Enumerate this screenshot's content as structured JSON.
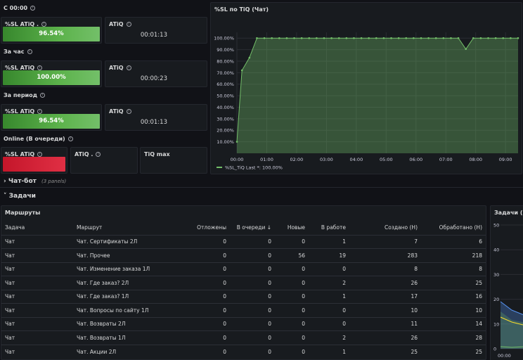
{
  "header": {
    "time_from": "С 00:00"
  },
  "kpis": {
    "from_midnight": {
      "sl_title": "%SL ATiQ .",
      "sl_value": "96.54%",
      "atiq_title": "ATiQ",
      "atiq_value": "00:01:13"
    },
    "hour_label": "За час",
    "hour": {
      "sl_title": "%SL ATiQ",
      "sl_value": "100.00%",
      "atiq_title": "ATiQ",
      "atiq_value": "00:00:23"
    },
    "period_label": "За период",
    "period": {
      "sl_title": "%SL ATiQ",
      "sl_value": "96.54%",
      "atiq_title": "ATiQ",
      "atiq_value": "00:01:13"
    },
    "online_label": "Online (В очереди)",
    "online": {
      "sl_title": "%SL ATiQ",
      "atiq_title": "ATiQ .",
      "tiq_max_title": "TiQ max"
    }
  },
  "colors": {
    "green": "#73bf69",
    "red": "#e02f44",
    "panel": "#181b1f",
    "bg": "#111217"
  },
  "chart_data": [
    {
      "type": "line",
      "title": "%SL по TiQ (Чат)",
      "ylim": [
        0,
        105
      ],
      "y_ticks": [
        "100.00%",
        "90.00%",
        "80.00%",
        "70.00%",
        "60.00%",
        "50.00%",
        "40.00%",
        "30.00%",
        "20.00%",
        "10.00%"
      ],
      "x_ticks": [
        "00:00",
        "01:00",
        "02:00",
        "03:00",
        "04:00",
        "05:00",
        "06:00",
        "07:00",
        "08:00",
        "09:00"
      ],
      "x": [
        0,
        0.17,
        0.42,
        0.67,
        0.92,
        1.17,
        1.42,
        1.67,
        1.92,
        2.17,
        2.42,
        2.67,
        2.92,
        3.17,
        3.42,
        3.67,
        3.92,
        4.17,
        4.42,
        4.67,
        4.92,
        5.17,
        5.42,
        5.67,
        5.92,
        6.17,
        6.42,
        6.67,
        6.92,
        7.17,
        7.42,
        7.67,
        7.92,
        8.17,
        8.42,
        8.67,
        8.92,
        9.17,
        9.42
      ],
      "series": [
        {
          "name": "%SL_TiQ",
          "values": [
            10,
            72,
            83,
            100,
            100,
            100,
            100,
            100,
            100,
            100,
            100,
            100,
            100,
            100,
            100,
            100,
            100,
            100,
            100,
            100,
            100,
            100,
            100,
            100,
            100,
            100,
            100,
            100,
            100,
            100,
            100,
            90.5,
            100,
            100,
            100,
            100,
            100,
            100,
            100
          ]
        }
      ],
      "legend": {
        "series": "%SL_TiQ",
        "last_label": "Last *:",
        "last_value": "100.00%"
      },
      "grid": true
    },
    {
      "type": "area",
      "title": "Задачи (Ча",
      "y_ticks": [
        "50",
        "40",
        "30",
        "20",
        "10",
        "0"
      ],
      "x_ticks": [
        "00:00"
      ],
      "ylim": [
        0,
        50
      ]
    }
  ],
  "rows": {
    "chatbot_label": "Чат-бот",
    "chatbot_count": "(3 panels)",
    "tasks_label": "Задачи"
  },
  "routes": {
    "title": "Маршруты",
    "columns": [
      "Задача",
      "Маршрут",
      "Отложены",
      "В очереди ↓",
      "Новые",
      "В работе",
      "Создано (Н)",
      "Обработано (Н)"
    ],
    "rows": [
      [
        "Чат",
        "Чат. Сертификаты 2Л",
        "0",
        "0",
        "0",
        "1",
        "7",
        "6"
      ],
      [
        "Чат",
        "Чат. Прочее",
        "0",
        "0",
        "56",
        "19",
        "283",
        "218"
      ],
      [
        "Чат",
        "Чат. Изменение заказа 1Л",
        "0",
        "0",
        "0",
        "0",
        "8",
        "8"
      ],
      [
        "Чат",
        "Чат. Где заказ? 2Л",
        "0",
        "0",
        "0",
        "2",
        "26",
        "25"
      ],
      [
        "Чат",
        "Чат. Где заказ? 1Л",
        "0",
        "0",
        "0",
        "1",
        "17",
        "16"
      ],
      [
        "Чат",
        "Чат. Вопросы по сайту 1Л",
        "0",
        "0",
        "0",
        "0",
        "10",
        "10"
      ],
      [
        "Чат",
        "Чат. Возвраты 2Л",
        "0",
        "0",
        "0",
        "0",
        "11",
        "14"
      ],
      [
        "Чат",
        "Чат. Возвраты 1Л",
        "0",
        "0",
        "0",
        "2",
        "26",
        "28"
      ],
      [
        "Чат",
        "Чат. Акции 2Л",
        "0",
        "0",
        "0",
        "1",
        "25",
        "25"
      ]
    ]
  }
}
